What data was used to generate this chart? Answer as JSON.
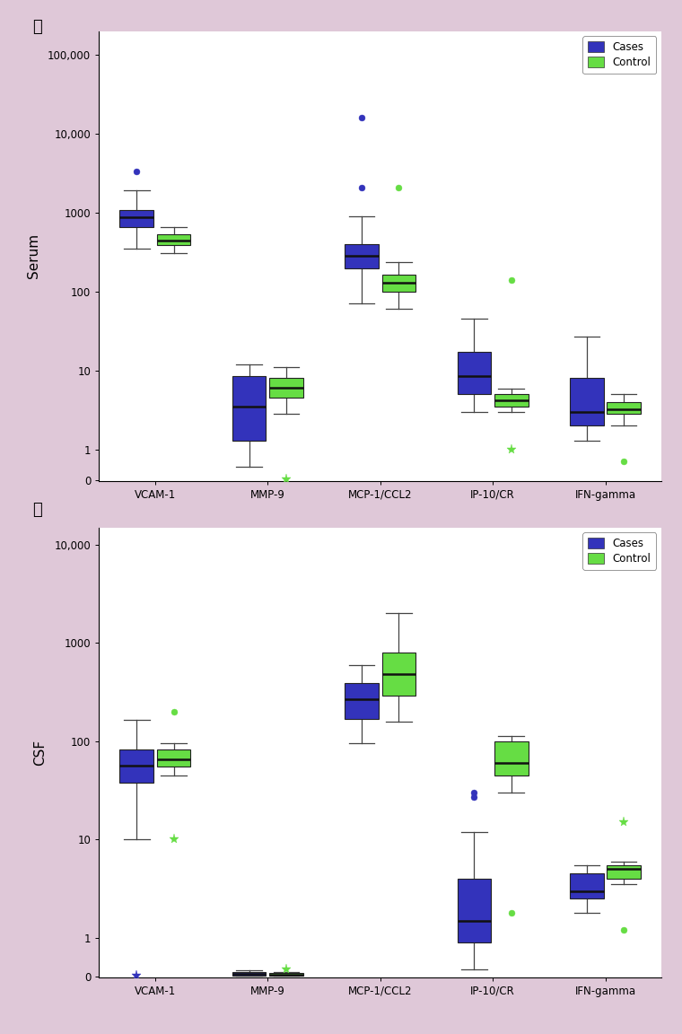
{
  "background_color": "#dfc8d8",
  "cases_color": "#3333bb",
  "control_color": "#66dd44",
  "categories": [
    "VCAM-1",
    "MMP-9",
    "MCP-1/CCL2",
    "IP-10/CR",
    "IFN-gamma"
  ],
  "panel_A": {
    "ylabel": "Serum",
    "panel_label": "A",
    "ymax": 200000,
    "yticks": [
      1,
      10,
      100,
      1000,
      10000,
      100000
    ],
    "ytick_labels": [
      "1",
      "10",
      "100",
      "1000",
      "10,000",
      "100,000"
    ],
    "cases": {
      "VCAM-1": {
        "q1": 650,
        "med": 870,
        "q3": 1080,
        "whislo": 350,
        "whishi": 1900,
        "fliers_hi": [
          3300
        ],
        "fliers_lo": [],
        "flo_sym": "o",
        "fhi_sym": "o"
      },
      "MMP-9": {
        "q1": 1.3,
        "med": 3.5,
        "q3": 8.5,
        "whislo": 0.6,
        "whishi": 12,
        "fliers_hi": [],
        "fliers_lo": [],
        "flo_sym": "o",
        "fhi_sym": "o"
      },
      "MCP-1/CCL2": {
        "q1": 195,
        "med": 280,
        "q3": 400,
        "whislo": 70,
        "whishi": 900,
        "fliers_hi": [
          2100,
          16000
        ],
        "fliers_lo": [],
        "flo_sym": "o",
        "fhi_sym": "o"
      },
      "IP-10/CR": {
        "q1": 5,
        "med": 8.5,
        "q3": 17,
        "whislo": 3,
        "whishi": 45,
        "fliers_hi": [],
        "fliers_lo": [],
        "flo_sym": "o",
        "fhi_sym": "o"
      },
      "IFN-gamma": {
        "q1": 2,
        "med": 3,
        "q3": 8,
        "whislo": 1.3,
        "whishi": 27,
        "fliers_hi": [],
        "fliers_lo": [],
        "flo_sym": "o",
        "fhi_sym": "o"
      }
    },
    "control": {
      "VCAM-1": {
        "q1": 385,
        "med": 445,
        "q3": 525,
        "whislo": 310,
        "whishi": 660,
        "fliers_hi": [],
        "fliers_lo": [],
        "flo_sym": "o",
        "fhi_sym": "o"
      },
      "MMP-9": {
        "q1": 4.5,
        "med": 6,
        "q3": 8,
        "whislo": 2.8,
        "whishi": 11,
        "fliers_hi": [],
        "fliers_lo": [
          0.05
        ],
        "flo_sym": "*",
        "fhi_sym": "o"
      },
      "MCP-1/CCL2": {
        "q1": 100,
        "med": 130,
        "q3": 165,
        "whislo": 60,
        "whishi": 235,
        "fliers_hi": [
          2100
        ],
        "fliers_lo": [],
        "flo_sym": "o",
        "fhi_sym": "o"
      },
      "IP-10/CR": {
        "q1": 3.5,
        "med": 4.2,
        "q3": 5,
        "whislo": 3,
        "whishi": 5.8,
        "fliers_hi": [
          140
        ],
        "fliers_lo": [
          1.0
        ],
        "flo_sym": "*",
        "fhi_sym": "o"
      },
      "IFN-gamma": {
        "q1": 2.8,
        "med": 3.2,
        "q3": 4,
        "whislo": 2,
        "whishi": 5,
        "fliers_hi": [],
        "fliers_lo": [
          0.7
        ],
        "flo_sym": "o",
        "fhi_sym": "o"
      }
    }
  },
  "panel_B": {
    "ylabel": "CSF",
    "panel_label": "B",
    "ymax": 15000,
    "yticks": [
      1,
      10,
      100,
      1000,
      10000
    ],
    "ytick_labels": [
      "1",
      "10",
      "100",
      "1000",
      "10,000"
    ],
    "cases": {
      "VCAM-1": {
        "q1": 38,
        "med": 56,
        "q3": 82,
        "whislo": 10,
        "whishi": 165,
        "fliers_hi": [],
        "fliers_lo": [
          0.05
        ],
        "flo_sym": "*",
        "fhi_sym": "o"
      },
      "MMP-9": {
        "q1": 0.05,
        "med": 0.12,
        "q3": 0.22,
        "whislo": 0.04,
        "whishi": 0.32,
        "fliers_hi": [],
        "fliers_lo": [],
        "flo_sym": "o",
        "fhi_sym": "o"
      },
      "MCP-1/CCL2": {
        "q1": 170,
        "med": 270,
        "q3": 390,
        "whislo": 95,
        "whishi": 600,
        "fliers_hi": [],
        "fliers_lo": [],
        "flo_sym": "o",
        "fhi_sym": "o"
      },
      "IP-10/CR": {
        "q1": 0.9,
        "med": 1.5,
        "q3": 4,
        "whislo": 0.4,
        "whishi": 12,
        "fliers_hi": [
          27,
          30
        ],
        "fliers_lo": [],
        "flo_sym": "o",
        "fhi_sym": "o"
      },
      "IFN-gamma": {
        "q1": 2.5,
        "med": 3,
        "q3": 4.5,
        "whislo": 1.8,
        "whishi": 5.5,
        "fliers_hi": [],
        "fliers_lo": [],
        "flo_sym": "o",
        "fhi_sym": "o"
      }
    },
    "control": {
      "VCAM-1": {
        "q1": 55,
        "med": 65,
        "q3": 82,
        "whislo": 45,
        "whishi": 96,
        "fliers_hi": [
          200
        ],
        "fliers_lo": [
          10
        ],
        "flo_sym": "*",
        "fhi_sym": "o"
      },
      "MMP-9": {
        "q1": 0.05,
        "med": 0.1,
        "q3": 0.2,
        "whislo": 0.04,
        "whishi": 0.25,
        "fliers_hi": [
          0.4
        ],
        "fliers_lo": [],
        "flo_sym": "o",
        "fhi_sym": "*"
      },
      "MCP-1/CCL2": {
        "q1": 290,
        "med": 480,
        "q3": 800,
        "whislo": 160,
        "whishi": 2000,
        "fliers_hi": [],
        "fliers_lo": [],
        "flo_sym": "o",
        "fhi_sym": "o"
      },
      "IP-10/CR": {
        "q1": 45,
        "med": 60,
        "q3": 100,
        "whislo": 30,
        "whishi": 112,
        "fliers_hi": [],
        "fliers_lo": [
          1.8
        ],
        "flo_sym": "o",
        "fhi_sym": "o"
      },
      "IFN-gamma": {
        "q1": 4,
        "med": 5,
        "q3": 5.5,
        "whislo": 3.5,
        "whishi": 6,
        "fliers_hi": [
          15
        ],
        "fliers_lo": [
          1.2
        ],
        "flo_sym": "o",
        "fhi_sym": "*"
      }
    }
  }
}
